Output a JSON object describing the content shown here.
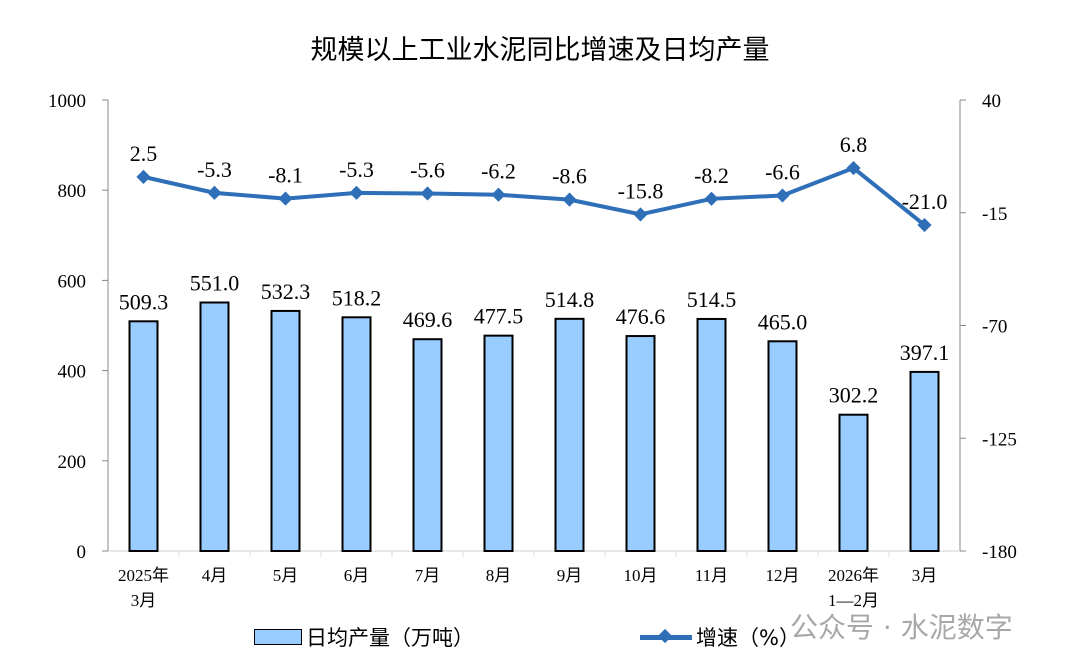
{
  "chart_data": {
    "type": "bar+line",
    "title": "规模以上工业水泥同比增速及日均产量",
    "categories": [
      "2025年\n3月",
      "4月",
      "5月",
      "6月",
      "7月",
      "8月",
      "9月",
      "10月",
      "11月",
      "12月",
      "2026年\n1—2月",
      "3月"
    ],
    "series": [
      {
        "name": "日均产量（万吨）",
        "type": "bar",
        "axis": "left",
        "color": "#99ccff",
        "values": [
          509.3,
          551.0,
          532.3,
          518.2,
          469.6,
          477.5,
          514.8,
          476.6,
          514.5,
          465.0,
          302.2,
          397.1
        ]
      },
      {
        "name": "增速（%）",
        "type": "line",
        "axis": "right",
        "color": "#2e6fb8",
        "values": [
          2.5,
          -5.3,
          -8.1,
          -5.3,
          -5.6,
          -6.2,
          -8.6,
          -15.8,
          -8.2,
          -6.6,
          6.8,
          -21.0
        ]
      }
    ],
    "left_axis": {
      "range": [
        0,
        1000
      ],
      "ticks": [
        0,
        200,
        400,
        600,
        800,
        1000
      ]
    },
    "right_axis": {
      "range": [
        -180,
        40
      ],
      "ticks": [
        -180,
        -125,
        -70,
        -15,
        40
      ]
    },
    "grid": false,
    "legend": "bottom"
  },
  "watermark": "公众号 · 水泥数字"
}
